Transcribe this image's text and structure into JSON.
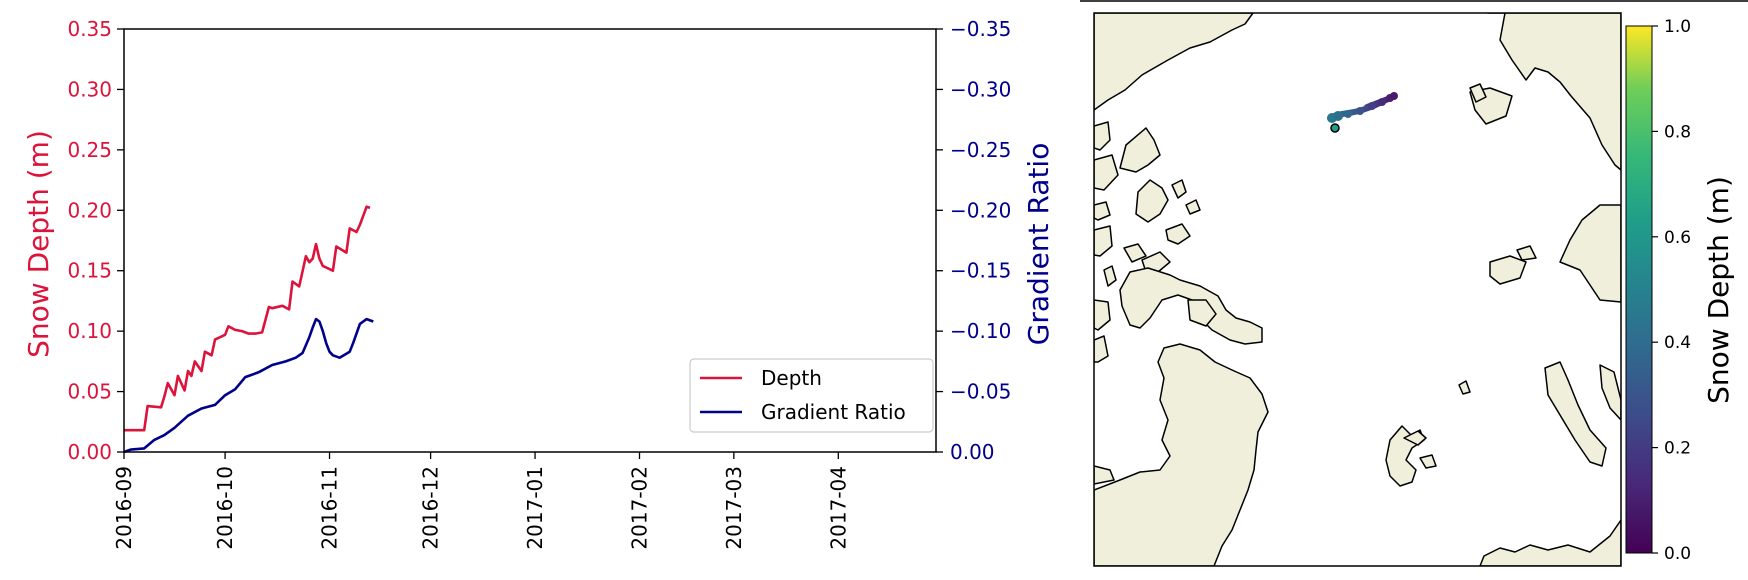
{
  "colors": {
    "depth": "#dc143c",
    "gradient": "#00008b",
    "land": "#efefdb",
    "axis": "#000000"
  },
  "chart_data": [
    {
      "type": "line",
      "xlabel": "",
      "ylabel_left": "Snow Depth (m)",
      "ylabel_right": "Gradient Ratio",
      "xlim": [
        "2016-09-01",
        "2017-04-30"
      ],
      "ylim_left": [
        0,
        0.35
      ],
      "ylim_right": [
        0,
        -0.35
      ],
      "x_ticks": [
        "2016-09",
        "2016-10",
        "2016-11",
        "2016-12",
        "2017-01",
        "2017-02",
        "2017-03",
        "2017-04"
      ],
      "y_ticks_left": [
        "0.00",
        "0.05",
        "0.10",
        "0.15",
        "0.20",
        "0.25",
        "0.30",
        "0.35"
      ],
      "y_ticks_right": [
        "0.00",
        "−0.05",
        "−0.10",
        "−0.15",
        "−0.20",
        "−0.25",
        "−0.30",
        "−0.35"
      ],
      "grid": false,
      "legend": {
        "position": "lower-right",
        "entries": [
          "Depth",
          "Gradient Ratio"
        ]
      },
      "series": [
        {
          "name": "Depth",
          "axis": "left",
          "x": [
            "2016-09-01",
            "2016-09-07",
            "2016-09-08",
            "2016-09-12",
            "2016-09-13",
            "2016-09-14",
            "2016-09-16",
            "2016-09-17",
            "2016-09-19",
            "2016-09-20",
            "2016-09-21",
            "2016-09-22",
            "2016-09-24",
            "2016-09-25",
            "2016-09-27",
            "2016-09-28",
            "2016-10-01",
            "2016-10-02",
            "2016-10-04",
            "2016-10-06",
            "2016-10-08",
            "2016-10-10",
            "2016-10-12",
            "2016-10-14",
            "2016-10-15",
            "2016-10-18",
            "2016-10-20",
            "2016-10-21",
            "2016-10-23",
            "2016-10-25",
            "2016-10-26",
            "2016-10-27",
            "2016-10-28",
            "2016-10-29",
            "2016-10-30",
            "2016-11-02",
            "2016-11-03",
            "2016-11-06",
            "2016-11-07",
            "2016-11-09",
            "2016-11-10",
            "2016-11-12",
            "2016-11-13"
          ],
          "values": [
            0.018,
            0.018,
            0.038,
            0.037,
            0.046,
            0.057,
            0.047,
            0.063,
            0.051,
            0.067,
            0.063,
            0.075,
            0.067,
            0.083,
            0.08,
            0.093,
            0.097,
            0.104,
            0.101,
            0.1,
            0.098,
            0.098,
            0.099,
            0.12,
            0.119,
            0.121,
            0.118,
            0.141,
            0.137,
            0.162,
            0.157,
            0.16,
            0.172,
            0.16,
            0.154,
            0.15,
            0.17,
            0.165,
            0.185,
            0.182,
            0.188,
            0.203,
            0.202
          ]
        },
        {
          "name": "Gradient Ratio",
          "axis": "right",
          "x": [
            "2016-09-01",
            "2016-09-03",
            "2016-09-07",
            "2016-09-10",
            "2016-09-13",
            "2016-09-16",
            "2016-09-20",
            "2016-09-24",
            "2016-09-28",
            "2016-10-01",
            "2016-10-04",
            "2016-10-07",
            "2016-10-11",
            "2016-10-15",
            "2016-10-19",
            "2016-10-22",
            "2016-10-24",
            "2016-10-26",
            "2016-10-27",
            "2016-10-28",
            "2016-10-29",
            "2016-10-30",
            "2016-10-31",
            "2016-11-01",
            "2016-11-02",
            "2016-11-04",
            "2016-11-07",
            "2016-11-08",
            "2016-11-10",
            "2016-11-12",
            "2016-11-14"
          ],
          "values": [
            0.0,
            -0.002,
            -0.003,
            -0.01,
            -0.014,
            -0.02,
            -0.03,
            -0.036,
            -0.039,
            -0.047,
            -0.052,
            -0.062,
            -0.066,
            -0.072,
            -0.075,
            -0.078,
            -0.082,
            -0.095,
            -0.103,
            -0.11,
            -0.108,
            -0.1,
            -0.09,
            -0.083,
            -0.08,
            -0.078,
            -0.083,
            -0.09,
            -0.106,
            -0.11,
            -0.108
          ]
        }
      ]
    },
    {
      "type": "scatter",
      "description": "map",
      "colorbar": {
        "label": "Snow Depth (m)",
        "ticks": [
          "0.0",
          "0.2",
          "0.4",
          "0.6",
          "0.8",
          "1.0"
        ],
        "range": [
          0.0,
          1.0
        ],
        "colormap": "viridis"
      },
      "track_depth_range": [
        0.02,
        0.2
      ]
    }
  ]
}
